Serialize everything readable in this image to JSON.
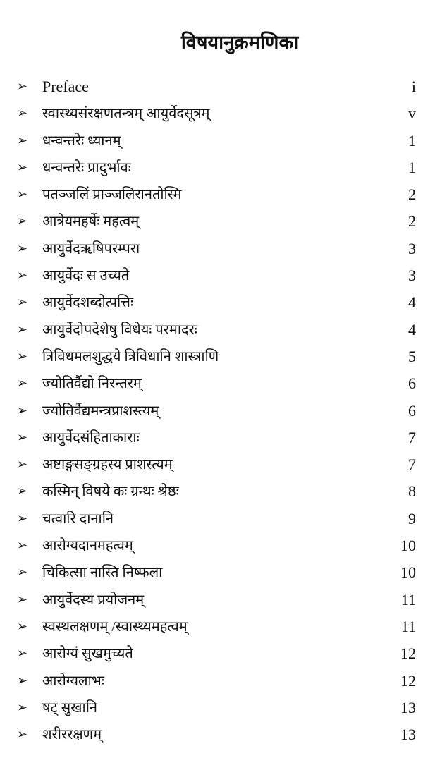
{
  "title": "विषयानुक्रमणिका",
  "bullet_icon": "arrowhead-right-icon",
  "entries": [
    {
      "label": "Preface",
      "page": "i"
    },
    {
      "label": "स्वास्थ्यसंरक्षणतन्त्रम् आयुर्वेदसूत्रम्",
      "page": "v"
    },
    {
      "label": "धन्वन्तरेः ध्यानम्",
      "page": "1"
    },
    {
      "label": "धन्वन्तरेः प्रादुर्भावः",
      "page": "1"
    },
    {
      "label": "पतञ्जलिं प्राञ्जलिरानतोस्मि",
      "page": "2"
    },
    {
      "label": "आत्रेयमहर्षेः महत्वम्",
      "page": "2"
    },
    {
      "label": "आयुर्वेदऋषिपरम्परा",
      "page": "3"
    },
    {
      "label": "आयुर्वेदः स उच्यते",
      "page": "3"
    },
    {
      "label": "आयुर्वेदशब्दोत्पत्तिः",
      "page": "4"
    },
    {
      "label": "आयुर्वेदोपदेशेषु विधेयः परमादरः",
      "page": "4"
    },
    {
      "label": "त्रिविधमलशुद्धये त्रिविधानि शास्त्राणि",
      "page": "5"
    },
    {
      "label": "ज्योतिर्वैद्यो निरन्तरम्",
      "page": "6"
    },
    {
      "label": "ज्योतिर्वैद्यमन्त्रप्राशस्त्यम्",
      "page": "6"
    },
    {
      "label": "आयुर्वेदसंहिताकाराः",
      "page": "7"
    },
    {
      "label": "अष्टाङ्गसङ्ग्रहस्य प्राशस्त्यम्",
      "page": "7"
    },
    {
      "label": "कस्मिन् विषये कः ग्रन्थः श्रेष्ठः",
      "page": "8"
    },
    {
      "label": "चत्वारि दानानि",
      "page": "9"
    },
    {
      "label": "आरोग्यदानमहत्वम्",
      "page": "10"
    },
    {
      "label": "चिकित्सा नास्ति निष्फला",
      "page": "10"
    },
    {
      "label": "आयुर्वेदस्य प्रयोजनम्",
      "page": "11"
    },
    {
      "label": "स्वस्थलक्षणम् /स्वास्थ्यमहत्वम्",
      "page": "11"
    },
    {
      "label": "आरोग्यं सुखमुच्यते",
      "page": "12"
    },
    {
      "label": "आरोग्यलाभः",
      "page": "12"
    },
    {
      "label": "षट् सुखानि",
      "page": "13"
    },
    {
      "label": "शरीररक्षणम्",
      "page": "13"
    }
  ]
}
